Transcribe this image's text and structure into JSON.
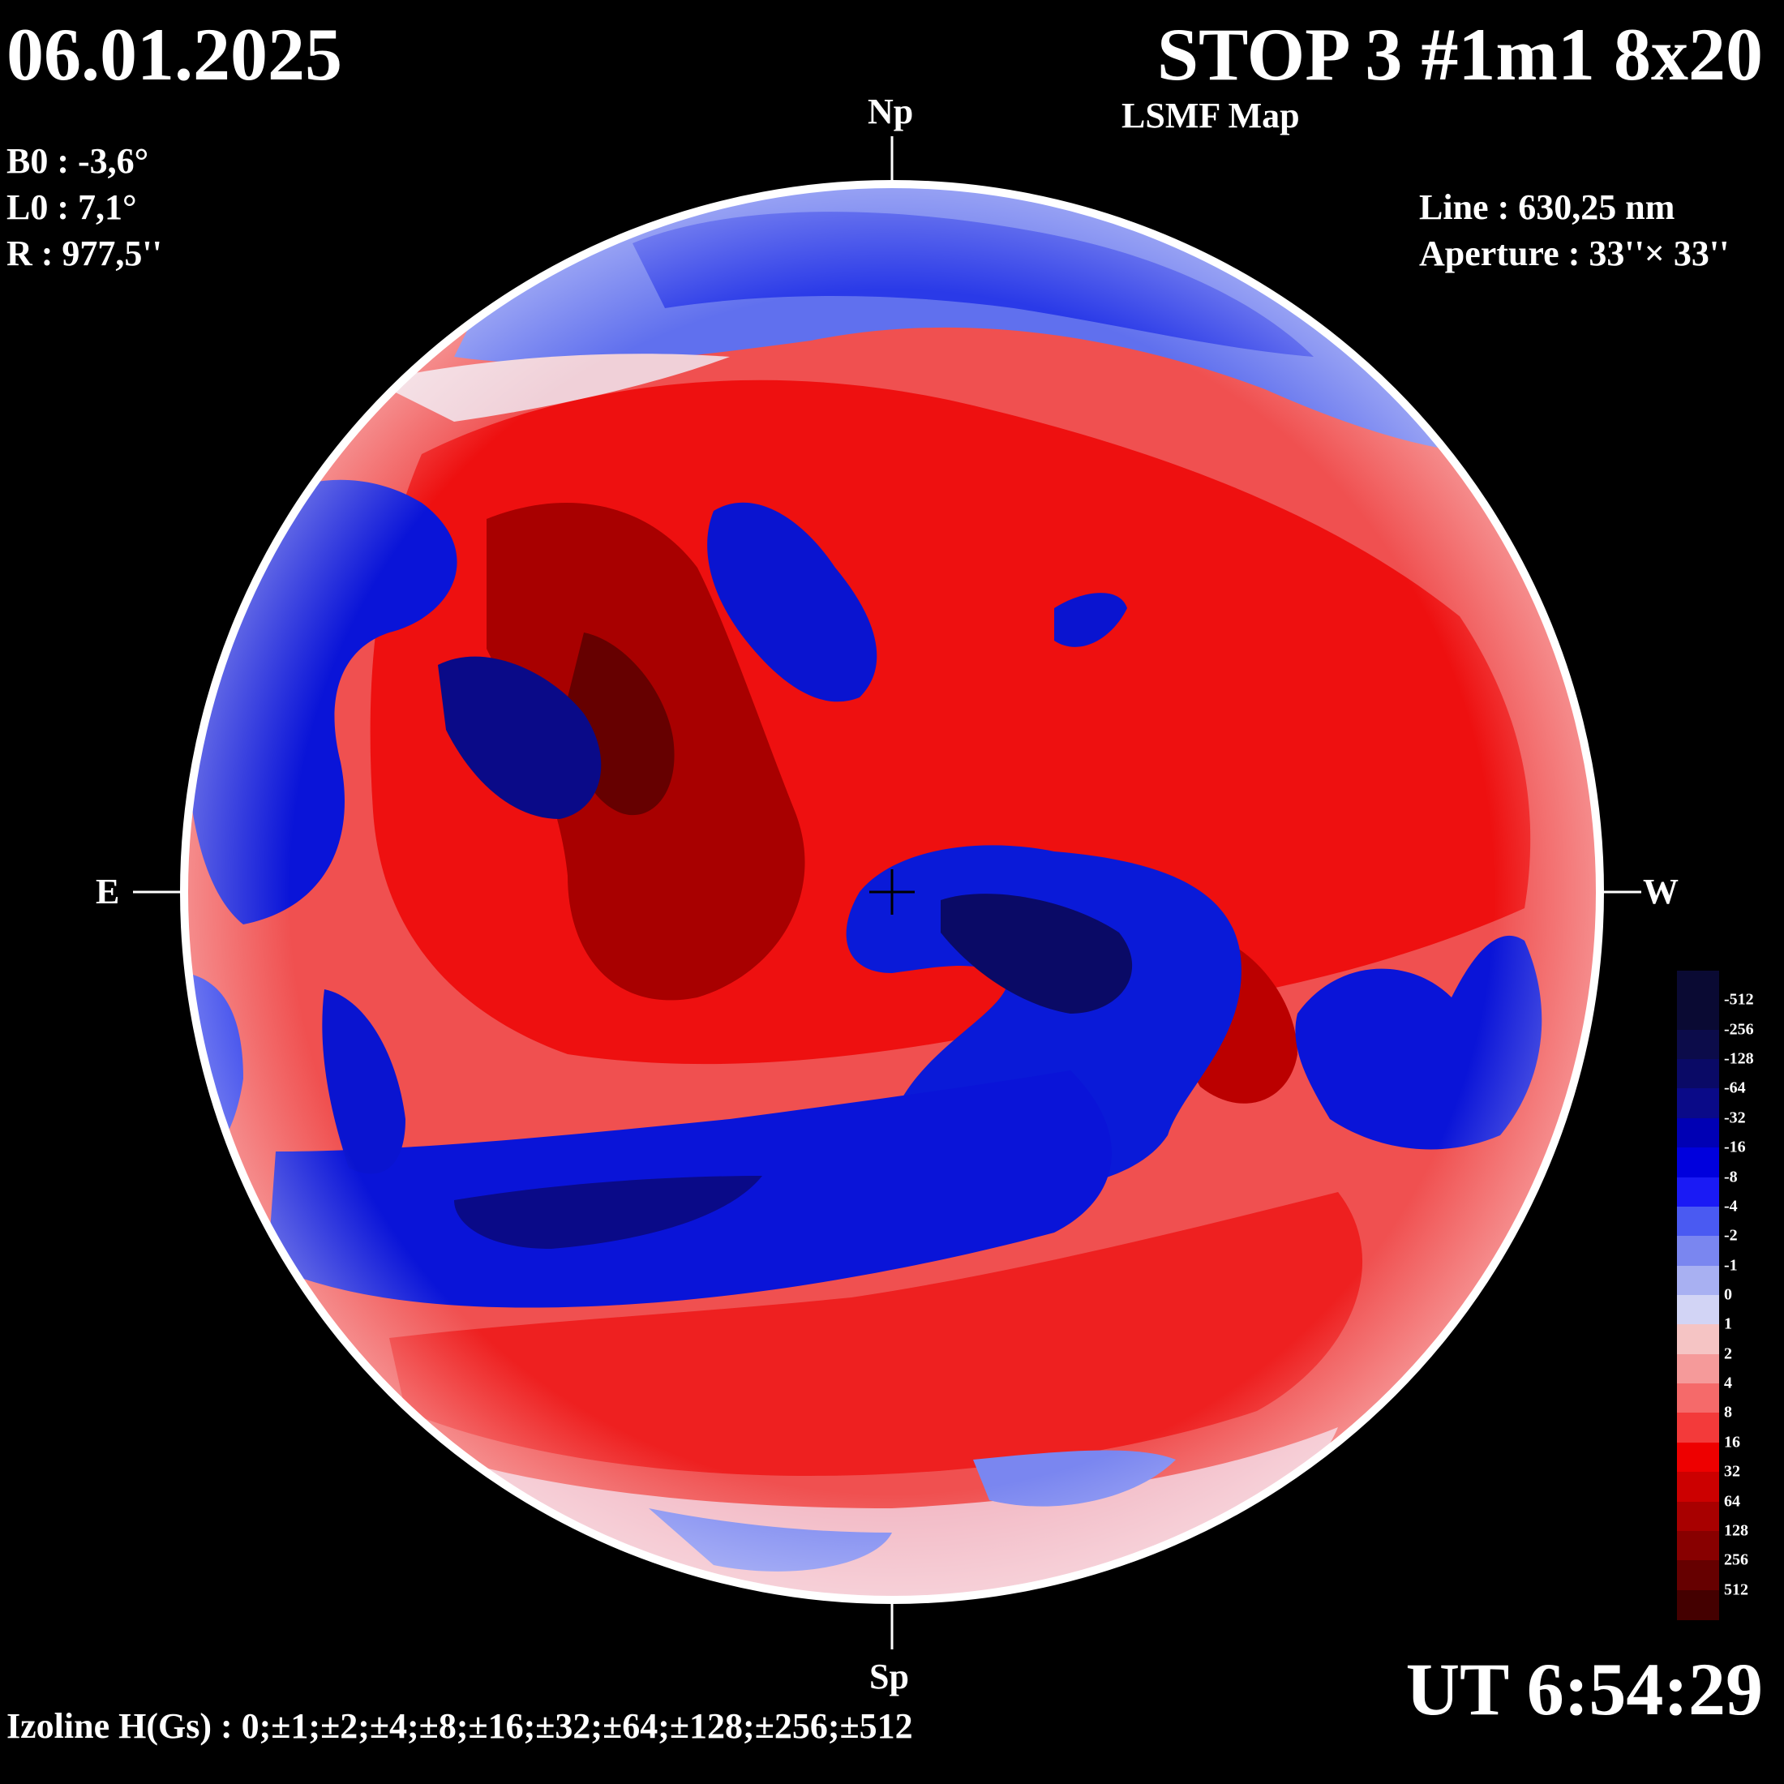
{
  "header": {
    "date": "06.01.2025",
    "title": "STOP 3 #1m1 8x20",
    "subtitle": "LSMF  Map"
  },
  "params": {
    "b0": "B0 : -3,6°",
    "l0": "L0 : 7,1°",
    "r": "R  : 977,5''",
    "line": "Line :  630,25 nm",
    "aperture": "Aperture : 33''× 33''"
  },
  "orientation": {
    "north": "Np",
    "south": "Sp",
    "east": "E",
    "west": "W"
  },
  "footer": {
    "time": "UT 6:54:29",
    "izoline": "Izoline H(Gs) : 0;±1;±2;±4;±8;±16;±32;±64;±128;±256;±512"
  },
  "colorbar": {
    "levels": [
      {
        "label": "-512",
        "color": "#0a0a33"
      },
      {
        "label": "-256",
        "color": "#0c0c4a"
      },
      {
        "label": "-128",
        "color": "#0a0a66"
      },
      {
        "label": "-64",
        "color": "#0a0a88"
      },
      {
        "label": "-32",
        "color": "#0000b4"
      },
      {
        "label": "-16",
        "color": "#0000dd"
      },
      {
        "label": "-8",
        "color": "#1a1af5"
      },
      {
        "label": "-4",
        "color": "#4a5af2"
      },
      {
        "label": "-2",
        "color": "#7a86f0"
      },
      {
        "label": "-1",
        "color": "#a8b0f2"
      },
      {
        "label": "0",
        "color": "#d2d4f5"
      },
      {
        "label": "1",
        "color": "#f5c4c4"
      },
      {
        "label": "2",
        "color": "#f59a9a"
      },
      {
        "label": "4",
        "color": "#f56a6a"
      },
      {
        "label": "8",
        "color": "#f33a3a"
      },
      {
        "label": "16",
        "color": "#ee0000"
      },
      {
        "label": "32",
        "color": "#cc0000"
      },
      {
        "label": "64",
        "color": "#a80000"
      },
      {
        "label": "128",
        "color": "#880000"
      },
      {
        "label": "256",
        "color": "#660000"
      },
      {
        "label": "512",
        "color": "#440000"
      }
    ]
  },
  "colors": {
    "background": "#000000",
    "disk_base": "#f04040",
    "positive": "#ee0000",
    "negative": "#0000dd",
    "neutral": "#f0f0f8"
  }
}
